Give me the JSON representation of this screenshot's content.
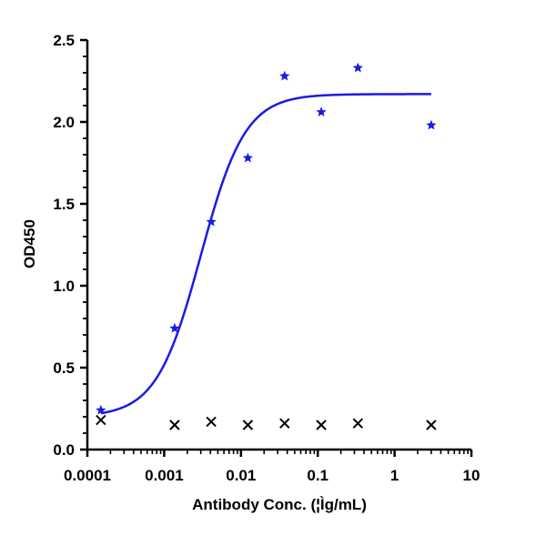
{
  "chart_data": {
    "type": "scatter",
    "title": "",
    "xlabel": "Antibody Conc. (¦Ìg/mL)",
    "ylabel": "OD450",
    "x_scale": "log",
    "xlim": [
      0.0001,
      10
    ],
    "ylim": [
      0,
      2.5
    ],
    "x_tick_labels": [
      "0.0001",
      "0.001",
      "0.01",
      "0.1",
      "1",
      "10"
    ],
    "x_tick_values": [
      0.0001,
      0.001,
      0.01,
      0.1,
      1,
      10
    ],
    "y_tick_labels": [
      "0.0",
      "0.5",
      "1.0",
      "1.5",
      "2.0",
      "2.5"
    ],
    "y_tick_values": [
      0,
      0.5,
      1.0,
      1.5,
      2.0,
      2.5
    ],
    "grid": false,
    "legend": "none",
    "series": [
      {
        "marker": "star",
        "color": "#1a1ae6",
        "x": [
          0.00015,
          0.00137,
          0.0041,
          0.0123,
          0.037,
          0.111,
          0.333,
          3.0
        ],
        "y": [
          0.24,
          0.74,
          1.39,
          1.78,
          2.28,
          2.06,
          2.33,
          1.98
        ]
      },
      {
        "marker": "cross",
        "color": "#000000",
        "x": [
          0.00015,
          0.00137,
          0.0041,
          0.0123,
          0.037,
          0.111,
          0.333,
          3.0
        ],
        "y": [
          0.18,
          0.15,
          0.17,
          0.15,
          0.16,
          0.15,
          0.16,
          0.15
        ]
      }
    ],
    "fit_curve": {
      "type": "4PL",
      "color": "#1a1ae6",
      "bottom": 0.2,
      "top": 2.17,
      "ec50": 0.003,
      "hill": 1.5,
      "x_range": [
        0.00015,
        3.0
      ]
    }
  }
}
